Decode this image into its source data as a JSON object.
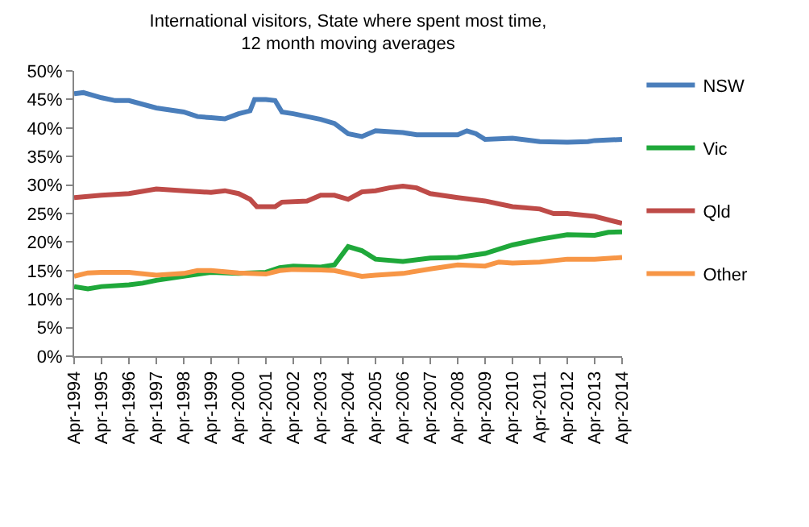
{
  "chart_data": {
    "type": "line",
    "title": "International visitors, State where spent most time,\n12 month moving averages",
    "xlim": [
      "1994-04",
      "2014-04"
    ],
    "xticks": [
      {
        "value": "1994-04",
        "label": "Apr-1994"
      },
      {
        "value": "1995-04",
        "label": "Apr-1995"
      },
      {
        "value": "1996-04",
        "label": "Apr-1996"
      },
      {
        "value": "1997-04",
        "label": "Apr-1997"
      },
      {
        "value": "1998-04",
        "label": "Apr-1998"
      },
      {
        "value": "1999-04",
        "label": "Apr-1999"
      },
      {
        "value": "2000-04",
        "label": "Apr-2000"
      },
      {
        "value": "2001-04",
        "label": "Apr-2001"
      },
      {
        "value": "2002-04",
        "label": "Apr-2002"
      },
      {
        "value": "2003-04",
        "label": "Apr-2003"
      },
      {
        "value": "2004-04",
        "label": "Apr-2004"
      },
      {
        "value": "2005-04",
        "label": "Apr-2005"
      },
      {
        "value": "2006-04",
        "label": "Apr-2006"
      },
      {
        "value": "2007-04",
        "label": "Apr-2007"
      },
      {
        "value": "2008-04",
        "label": "Apr-2008"
      },
      {
        "value": "2009-04",
        "label": "Apr-2009"
      },
      {
        "value": "2010-04",
        "label": "Apr-2010"
      },
      {
        "value": "2011-04",
        "label": "Apr-2011"
      },
      {
        "value": "2012-04",
        "label": "Apr-2012"
      },
      {
        "value": "2013-04",
        "label": "Apr-2013"
      },
      {
        "value": "2014-04",
        "label": "Apr-2014"
      }
    ],
    "ylim": [
      0,
      50
    ],
    "yticks": [
      {
        "value": 0,
        "label": "0%"
      },
      {
        "value": 5,
        "label": "5%"
      },
      {
        "value": 10,
        "label": "10%"
      },
      {
        "value": 15,
        "label": "15%"
      },
      {
        "value": 20,
        "label": "20%"
      },
      {
        "value": 25,
        "label": "25%"
      },
      {
        "value": 30,
        "label": "30%"
      },
      {
        "value": 35,
        "label": "35%"
      },
      {
        "value": 40,
        "label": "40%"
      },
      {
        "value": 45,
        "label": "45%"
      },
      {
        "value": 50,
        "label": "50%"
      }
    ],
    "grid": false,
    "legend": "right",
    "marker": "none",
    "line_style": "solid",
    "series": [
      {
        "name": "NSW",
        "color": "#4a7ebb",
        "x": [
          "1994-04",
          "1994-08",
          "1995-04",
          "1995-10",
          "1996-04",
          "1997-04",
          "1998-04",
          "1998-10",
          "1999-04",
          "1999-10",
          "2000-04",
          "2000-09",
          "2000-11",
          "2001-04",
          "2001-08",
          "2001-11",
          "2002-04",
          "2003-04",
          "2003-10",
          "2004-04",
          "2004-10",
          "2005-04",
          "2006-04",
          "2006-10",
          "2007-04",
          "2008-04",
          "2008-08",
          "2008-12",
          "2009-04",
          "2010-04",
          "2011-04",
          "2012-04",
          "2013-01",
          "2013-04",
          "2014-04"
        ],
        "values": [
          46,
          46.2,
          45.3,
          44.8,
          44.8,
          43.5,
          42.8,
          42,
          41.8,
          41.6,
          42.5,
          43,
          45,
          45,
          44.8,
          42.8,
          42.5,
          41.5,
          40.8,
          39,
          38.5,
          39.5,
          39.2,
          38.8,
          38.8,
          38.8,
          39.5,
          39,
          38,
          38.2,
          37.6,
          37.5,
          37.6,
          37.8,
          38
        ]
      },
      {
        "name": "Vic",
        "color": "#1fa83a",
        "x": [
          "1994-04",
          "1994-10",
          "1995-04",
          "1996-04",
          "1996-10",
          "1997-04",
          "1998-04",
          "1999-04",
          "2000-04",
          "2001-04",
          "2001-10",
          "2002-04",
          "2003-04",
          "2003-10",
          "2004-04",
          "2004-10",
          "2005-04",
          "2006-04",
          "2007-04",
          "2008-04",
          "2009-04",
          "2010-04",
          "2011-04",
          "2012-04",
          "2013-04",
          "2013-10",
          "2014-04"
        ],
        "values": [
          12.2,
          11.8,
          12.2,
          12.5,
          12.8,
          13.3,
          14,
          14.7,
          14.5,
          14.7,
          15.5,
          15.8,
          15.6,
          16,
          19.2,
          18.5,
          17,
          16.6,
          17.2,
          17.3,
          18,
          19.5,
          20.5,
          21.3,
          21.2,
          21.7,
          21.8
        ]
      },
      {
        "name": "Qld",
        "color": "#be4b48",
        "x": [
          "1994-04",
          "1995-04",
          "1996-04",
          "1997-04",
          "1998-04",
          "1999-04",
          "1999-10",
          "2000-04",
          "2000-09",
          "2000-12",
          "2001-08",
          "2001-11",
          "2002-10",
          "2003-04",
          "2003-10",
          "2004-04",
          "2004-10",
          "2005-04",
          "2005-10",
          "2006-04",
          "2006-10",
          "2007-04",
          "2008-04",
          "2009-04",
          "2010-04",
          "2011-04",
          "2011-10",
          "2012-04",
          "2013-04",
          "2014-04"
        ],
        "values": [
          27.8,
          28.2,
          28.5,
          29.3,
          29,
          28.7,
          29,
          28.5,
          27.5,
          26.2,
          26.2,
          27,
          27.2,
          28.2,
          28.2,
          27.5,
          28.8,
          29,
          29.5,
          29.8,
          29.5,
          28.5,
          27.8,
          27.2,
          26.2,
          25.8,
          25,
          25,
          24.5,
          23.3
        ]
      },
      {
        "name": "Other",
        "color": "#f79646",
        "x": [
          "1994-04",
          "1994-10",
          "1995-04",
          "1996-04",
          "1997-04",
          "1998-04",
          "1998-10",
          "1999-04",
          "2000-04",
          "2001-04",
          "2001-10",
          "2002-04",
          "2003-04",
          "2003-10",
          "2004-04",
          "2004-10",
          "2005-04",
          "2006-04",
          "2007-04",
          "2008-04",
          "2009-04",
          "2009-10",
          "2010-04",
          "2011-04",
          "2012-04",
          "2013-04",
          "2014-04"
        ],
        "values": [
          14,
          14.6,
          14.7,
          14.7,
          14.2,
          14.5,
          15,
          15,
          14.6,
          14.4,
          15,
          15.2,
          15.1,
          15,
          14.5,
          14,
          14.2,
          14.5,
          15.3,
          16,
          15.8,
          16.5,
          16.3,
          16.5,
          17,
          17,
          17.3
        ]
      }
    ]
  }
}
